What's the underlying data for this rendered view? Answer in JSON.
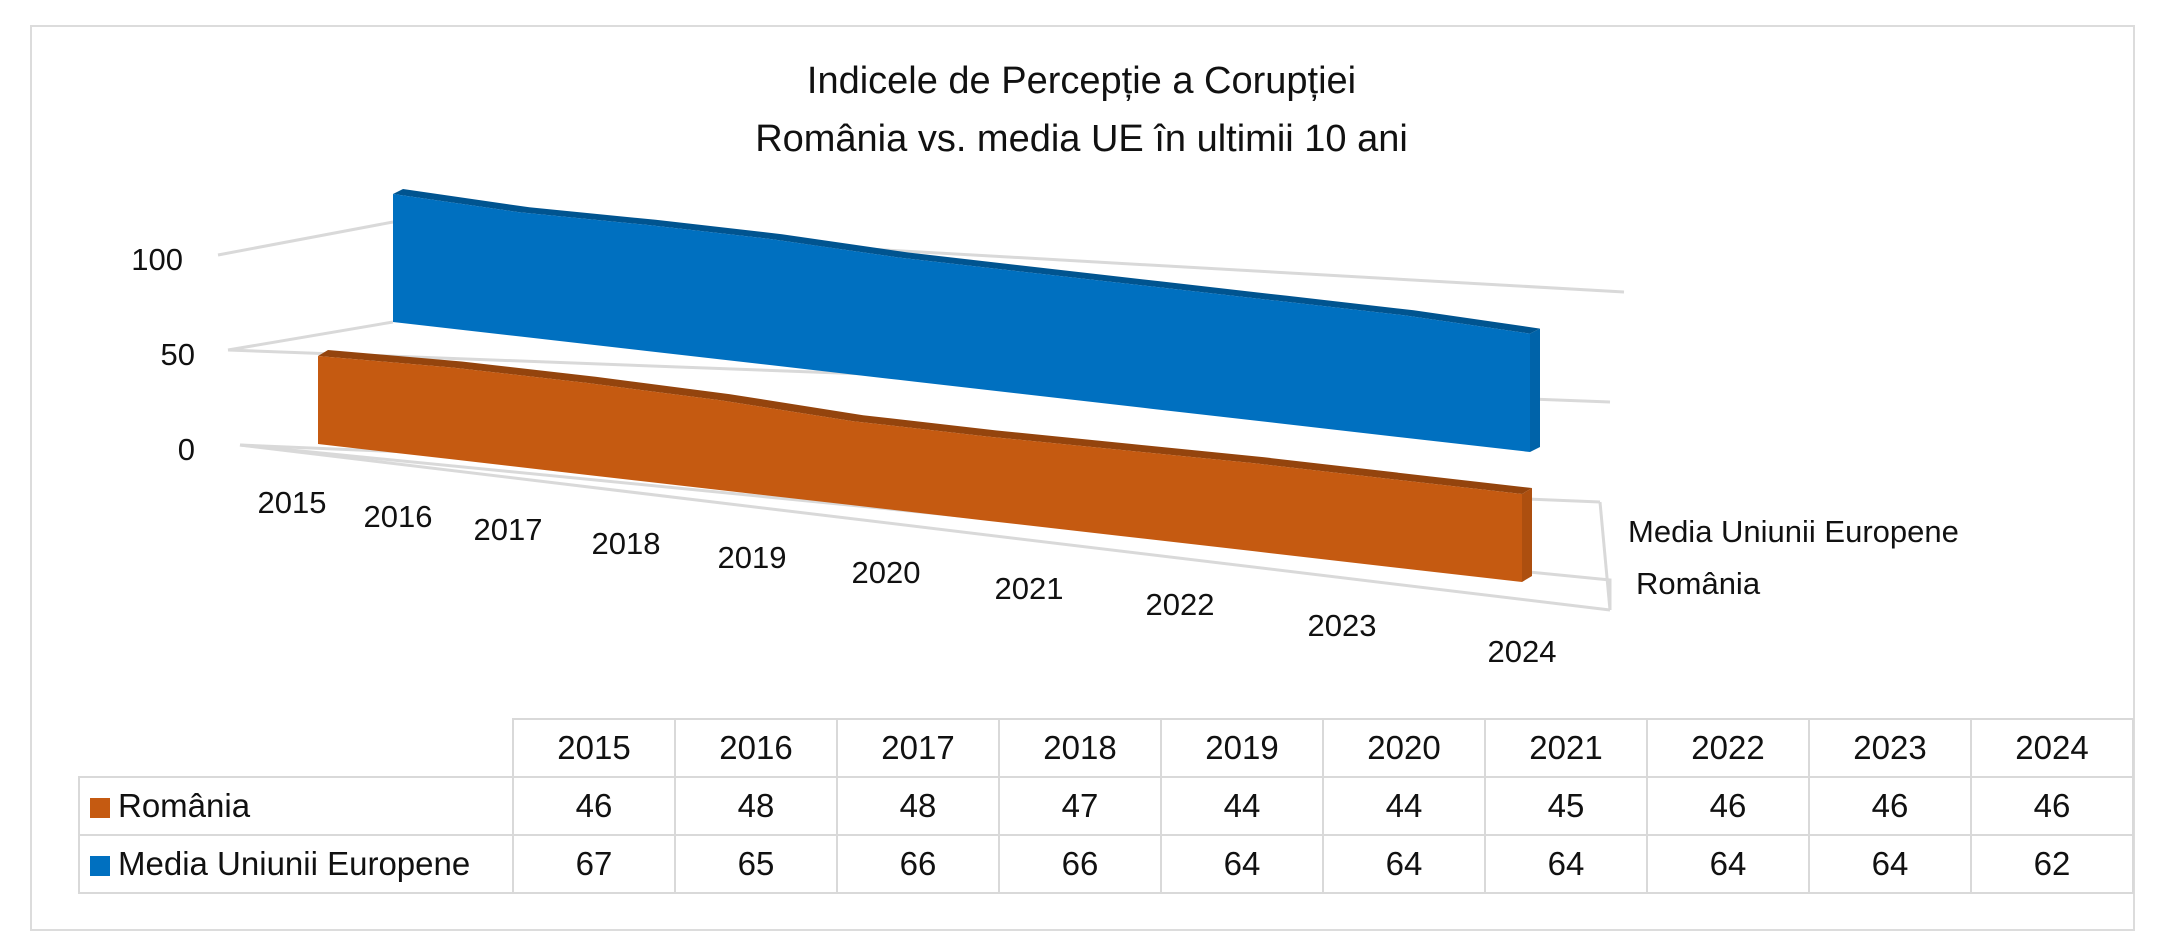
{
  "chart_data": {
    "type": "area",
    "title": "Indicele de Percepție a Corupției",
    "subtitle": "România vs. media UE în ultimii 10 ani",
    "categories": [
      "2015",
      "2016",
      "2017",
      "2018",
      "2019",
      "2020",
      "2021",
      "2022",
      "2023",
      "2024"
    ],
    "yticks": [
      "0",
      "50",
      "100"
    ],
    "ylim": [
      0,
      100
    ],
    "grid": true,
    "legend_position": "right",
    "series": [
      {
        "name": "Media Uniunii Europene",
        "color": "#0070c0",
        "values": [
          67,
          65,
          66,
          66,
          64,
          64,
          64,
          64,
          64,
          62
        ]
      },
      {
        "name": "România",
        "color": "#c55a11",
        "values": [
          46,
          48,
          48,
          47,
          44,
          44,
          45,
          46,
          46,
          46
        ]
      }
    ]
  }
}
